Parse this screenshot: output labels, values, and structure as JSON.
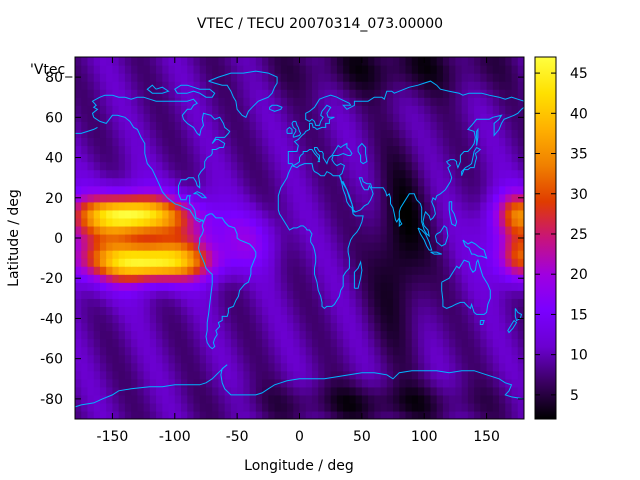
{
  "title": "VTEC / TECU 20070314_073.00000",
  "legend_label": "'Vtec_",
  "colors": {
    "background": "#ffffff",
    "coastline": "#00b4ff",
    "colormap": [
      "#000000",
      "#3a0060",
      "#6b00d0",
      "#7a00ff",
      "#a000e0",
      "#c8147a",
      "#e03c00",
      "#f08000",
      "#ffb000",
      "#ffe000",
      "#ffff40"
    ]
  },
  "chart_data": {
    "type": "heatmap",
    "xlabel": "Longitude / deg",
    "ylabel": "Latitude / deg",
    "xlim": [
      -180,
      180
    ],
    "ylim": [
      -90,
      90
    ],
    "xticks": [
      -150,
      -100,
      -50,
      0,
      50,
      100,
      150
    ],
    "yticks": [
      -80,
      -60,
      -40,
      -20,
      0,
      20,
      40,
      60,
      80
    ],
    "colorbar": {
      "range": [
        2,
        47
      ],
      "ticks": [
        5,
        10,
        15,
        20,
        25,
        30,
        35,
        40,
        45
      ]
    }
  }
}
